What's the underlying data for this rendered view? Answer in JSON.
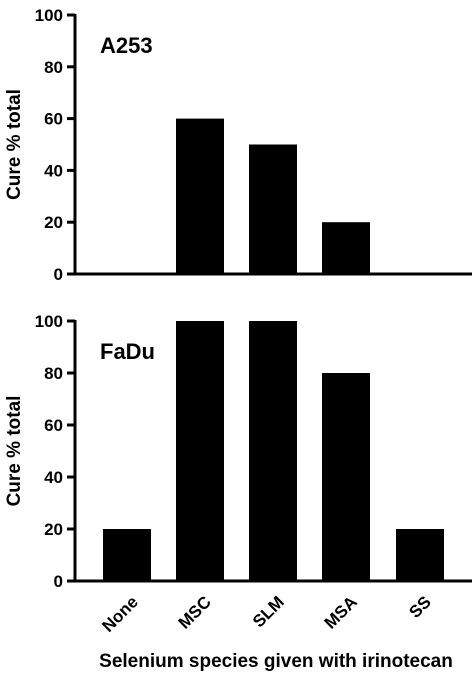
{
  "figure": {
    "xlabel": "Selenium species given with irinotecan"
  },
  "chart_data": [
    {
      "type": "bar",
      "title": "A253",
      "categories": [
        "None",
        "MSC",
        "SLM",
        "MSA",
        "SS"
      ],
      "values": [
        0,
        60,
        50,
        20,
        0
      ],
      "ylabel": "Cure % total",
      "xlabel": "",
      "ylim": [
        0,
        100
      ],
      "yticks": [
        "0",
        "20",
        "40",
        "60",
        "80",
        "100"
      ],
      "grid": false,
      "bar_color": "#000000"
    },
    {
      "type": "bar",
      "title": "FaDu",
      "categories": [
        "None",
        "MSC",
        "SLM",
        "MSA",
        "SS"
      ],
      "values": [
        20,
        100,
        100,
        80,
        20
      ],
      "ylabel": "Cure % total",
      "xlabel": "Selenium species given with irinotecan",
      "ylim": [
        0,
        100
      ],
      "yticks": [
        "0",
        "20",
        "40",
        "60",
        "80",
        "100"
      ],
      "grid": false,
      "bar_color": "#000000"
    }
  ]
}
